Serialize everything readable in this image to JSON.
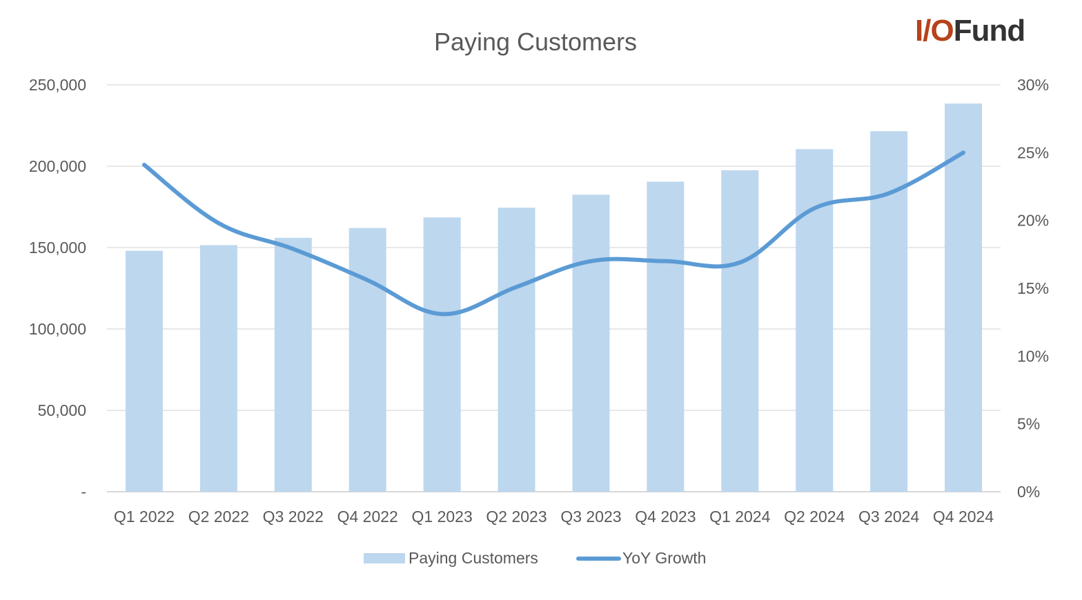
{
  "logo": {
    "accent": "I/O",
    "rest": "Fund",
    "accent_color": "#b5431b"
  },
  "chart_data": {
    "type": "bar+line",
    "title": "Paying Customers",
    "categories": [
      "Q1 2022",
      "Q2 2022",
      "Q3 2022",
      "Q4 2022",
      "Q1 2023",
      "Q2 2023",
      "Q3 2023",
      "Q4 2023",
      "Q1 2024",
      "Q2 2024",
      "Q3 2024",
      "Q4 2024"
    ],
    "series": [
      {
        "name": "Paying Customers",
        "type": "bar",
        "axis": "left",
        "color": "#bdd7ee",
        "values": [
          148000,
          151500,
          156000,
          162000,
          168500,
          174500,
          182500,
          190500,
          197500,
          210500,
          221500,
          238500
        ]
      },
      {
        "name": "YoY Growth",
        "type": "line",
        "axis": "right",
        "color": "#5b9bd5",
        "values": [
          24.1,
          19.8,
          17.9,
          15.6,
          13.1,
          15.1,
          17.0,
          17.0,
          16.9,
          20.9,
          22.0,
          25.0
        ]
      }
    ],
    "y_left": {
      "min": 0,
      "max": 250000,
      "ticks": [
        "-",
        "50,000",
        "100,000",
        "150,000",
        "200,000",
        "250,000"
      ]
    },
    "y_right": {
      "min": 0,
      "max": 30,
      "ticks": [
        "0%",
        "5%",
        "10%",
        "15%",
        "20%",
        "25%",
        "30%"
      ]
    },
    "grid": true,
    "legend_position": "bottom",
    "legend": [
      "Paying Customers",
      "YoY Growth"
    ]
  }
}
